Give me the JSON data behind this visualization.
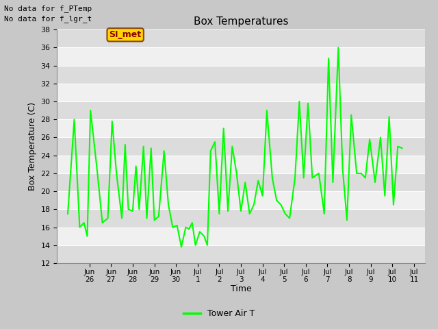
{
  "title": "Box Temperatures",
  "ylabel": "Box Temperature (C)",
  "xlabel": "Time",
  "notes": [
    "No data for f_PTemp",
    "No data for f_lgr_t"
  ],
  "si_met_label": "SI_met",
  "legend_label": "Tower Air T",
  "line_color": "#00FF00",
  "ylim": [
    12,
    38
  ],
  "yticks": [
    12,
    14,
    16,
    18,
    20,
    22,
    24,
    26,
    28,
    30,
    32,
    34,
    36,
    38
  ],
  "xtick_labels": [
    "Jun\n26",
    "Jun\n27",
    "Jun\n28",
    "Jun\n29",
    "Jun\n30",
    "Jul\n1",
    "Jul\n2",
    "Jul\n3",
    "Jul\n4",
    "Jul\n5",
    "Jul\n6",
    "Jul\n7",
    "Jul\n8",
    "Jul\n9",
    "Jul\n10",
    "Jul\n11"
  ],
  "data_x": [
    0.0,
    0.3,
    0.55,
    0.75,
    0.9,
    1.05,
    1.35,
    1.6,
    1.85,
    2.05,
    2.25,
    2.5,
    2.65,
    2.8,
    3.0,
    3.15,
    3.3,
    3.5,
    3.65,
    3.85,
    4.0,
    4.2,
    4.45,
    4.65,
    4.85,
    5.05,
    5.25,
    5.45,
    5.6,
    5.75,
    5.9,
    6.1,
    6.3,
    6.45,
    6.6,
    6.8,
    7.0,
    7.2,
    7.4,
    7.6,
    7.8,
    8.0,
    8.2,
    8.4,
    8.6,
    8.8,
    9.0,
    9.2,
    9.45,
    9.65,
    9.85,
    10.05,
    10.25,
    10.5,
    10.7,
    10.9,
    11.1,
    11.3,
    11.6,
    11.85,
    12.05,
    12.25,
    12.5,
    12.7,
    12.9,
    13.1,
    13.35,
    13.55,
    13.75,
    13.95,
    14.2,
    14.45,
    14.65,
    14.85,
    15.05,
    15.25,
    15.45
  ],
  "data_y": [
    17.5,
    28.0,
    16.0,
    16.5,
    15.0,
    29.0,
    22.5,
    16.5,
    17.0,
    27.8,
    22.0,
    17.0,
    25.2,
    18.0,
    17.8,
    22.8,
    18.0,
    25.0,
    17.0,
    24.8,
    16.8,
    17.2,
    24.5,
    18.5,
    16.0,
    16.2,
    13.8,
    16.0,
    15.8,
    16.5,
    14.0,
    15.5,
    15.0,
    14.0,
    24.5,
    25.5,
    17.5,
    27.0,
    17.8,
    25.0,
    22.0,
    17.8,
    21.0,
    17.5,
    18.5,
    21.2,
    19.5,
    29.0,
    21.5,
    19.0,
    18.5,
    17.5,
    17.0,
    21.5,
    30.0,
    21.5,
    29.8,
    21.5,
    22.0,
    17.5,
    34.8,
    21.0,
    36.0,
    22.5,
    16.8,
    28.5,
    22.0,
    22.0,
    21.5,
    25.8,
    21.0,
    26.0,
    19.5,
    28.3,
    18.5,
    25.0,
    24.8
  ]
}
